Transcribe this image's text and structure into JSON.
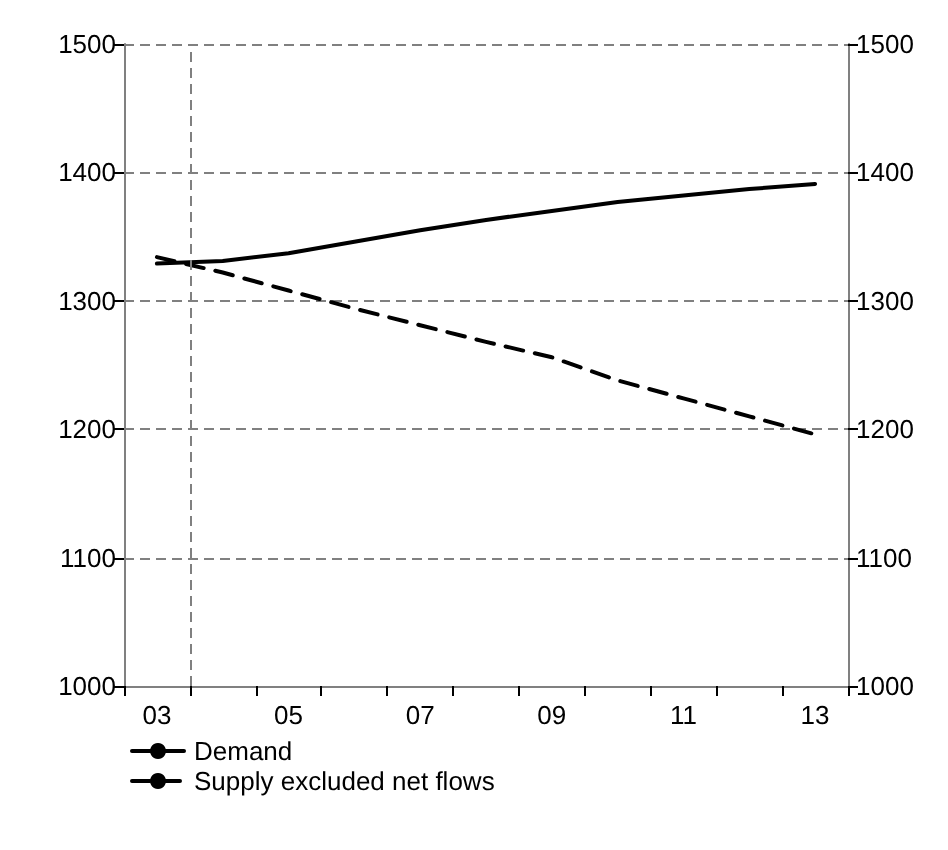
{
  "chart_data": {
    "type": "line",
    "x": [
      3,
      4,
      5,
      6,
      7,
      8,
      9,
      10,
      11,
      12,
      13
    ],
    "series": [
      {
        "name": "Demand",
        "color": "#000000",
        "line_style": "solid",
        "values": [
          1329,
          1331,
          1337,
          1346,
          1355,
          1363,
          1370,
          1377,
          1382,
          1387,
          1391
        ]
      },
      {
        "name": "Supply excluded net flows",
        "color": "#000000",
        "line_style": "dashed",
        "values": [
          1334,
          1322,
          1308,
          1294,
          1281,
          1268,
          1256,
          1238,
          1224,
          1210,
          1196
        ]
      }
    ],
    "xlim": [
      2.5,
      13.5
    ],
    "xticks": [
      {
        "value": 2.5,
        "label": null
      },
      {
        "value": 3,
        "label": "03"
      },
      {
        "value": 3.5,
        "label": null
      },
      {
        "value": 4.5,
        "label": null
      },
      {
        "value": 5,
        "label": "05"
      },
      {
        "value": 5.5,
        "label": null
      },
      {
        "value": 6.5,
        "label": null
      },
      {
        "value": 7,
        "label": "07"
      },
      {
        "value": 7.5,
        "label": null
      },
      {
        "value": 8.5,
        "label": null
      },
      {
        "value": 9,
        "label": "09"
      },
      {
        "value": 9.5,
        "label": null
      },
      {
        "value": 10.5,
        "label": null
      },
      {
        "value": 11,
        "label": "11"
      },
      {
        "value": 11.5,
        "label": null
      },
      {
        "value": 12.5,
        "label": null
      },
      {
        "value": 13,
        "label": "13"
      },
      {
        "value": 13.5,
        "label": null
      }
    ],
    "ylim": [
      1000,
      1500
    ],
    "yticks": [
      1000,
      1100,
      1200,
      1300,
      1400,
      1500
    ],
    "y2lim": [
      1000,
      1500
    ],
    "y2ticks": [
      1000,
      1100,
      1200,
      1300,
      1400,
      1500
    ],
    "grid": "y",
    "legend": "bottom left",
    "marker": "none",
    "ref_lines": [
      {
        "axis": "x",
        "value": 3.5,
        "color": "#808080",
        "line_style": "dashed"
      }
    ]
  }
}
